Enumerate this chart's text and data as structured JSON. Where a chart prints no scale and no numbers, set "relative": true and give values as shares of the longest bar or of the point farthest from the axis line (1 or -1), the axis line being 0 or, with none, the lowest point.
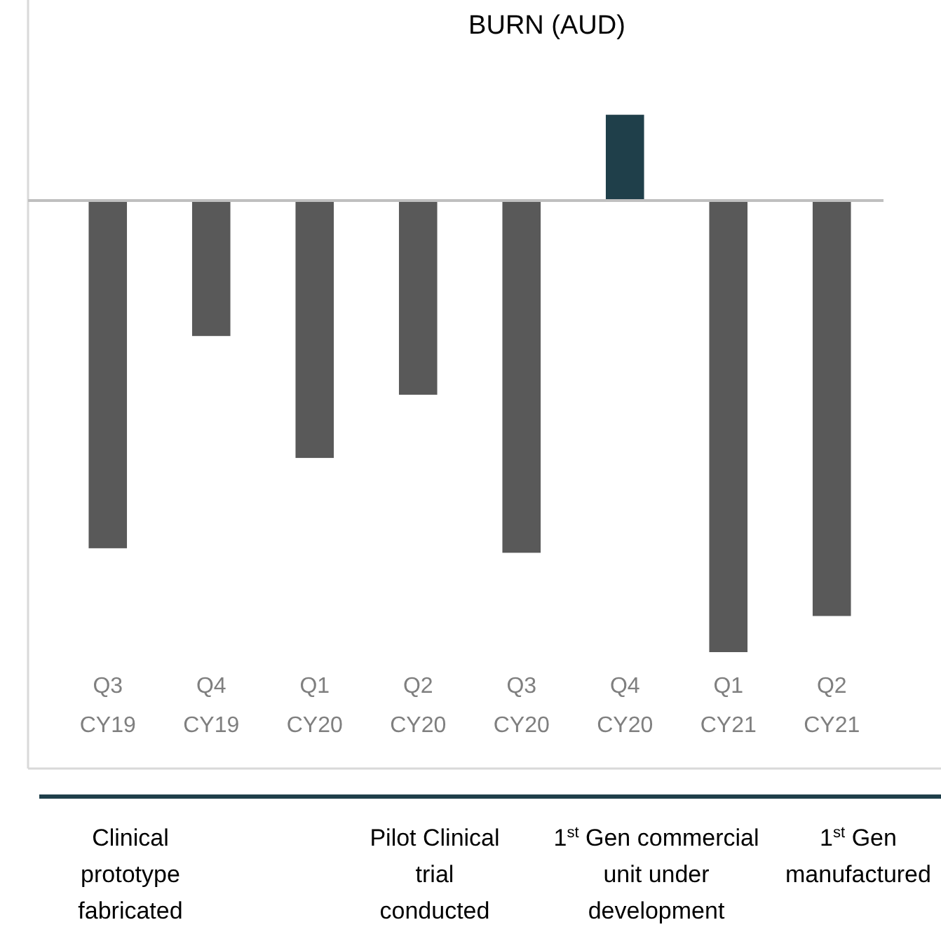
{
  "chart_data": {
    "type": "bar",
    "title": "BURN (AUD)",
    "relative": true,
    "categories": [
      "Q3 CY19",
      "Q4 CY19",
      "Q1 CY20",
      "Q2 CY20",
      "Q3 CY20",
      "Q4 CY20",
      "Q1 CY21",
      "Q2 CY21"
    ],
    "values": [
      -0.77,
      -0.3,
      -0.57,
      -0.43,
      -0.78,
      0.19,
      -1,
      -0.92
    ],
    "colors": [
      "#595959",
      "#595959",
      "#595959",
      "#595959",
      "#595959",
      "#1f3f4a",
      "#595959",
      "#595959"
    ],
    "annotations": [
      "Clinical\nprototype\nfabricated",
      "Pilot Clinical\ntrial\nconducted",
      "1$^{st}$ Gen commercial\nunit under\ndevelopment",
      "1$^{st}$ Gen\nmanufactured"
    ]
  }
}
